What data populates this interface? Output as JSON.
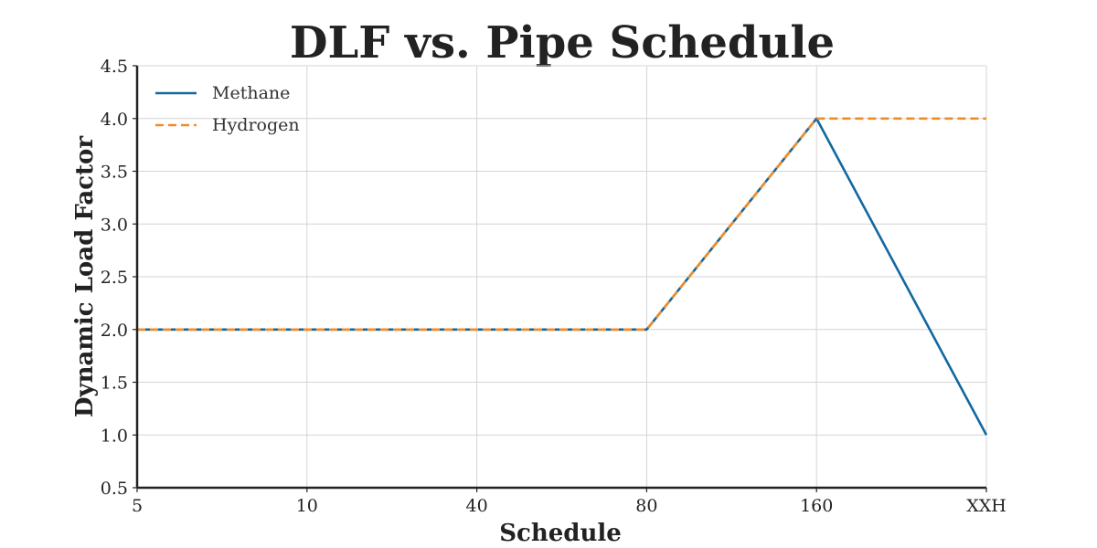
{
  "chart_data": {
    "type": "line",
    "title": "DLF vs. Pipe Schedule",
    "xlabel": "Schedule",
    "ylabel": "Dynamic Load Factor",
    "categories": [
      "5",
      "10",
      "40",
      "80",
      "160",
      "XXH"
    ],
    "ylim": [
      0.5,
      4.5
    ],
    "yticks": [
      "0.5",
      "1.0",
      "1.5",
      "2.0",
      "2.5",
      "3.0",
      "3.5",
      "4.0",
      "4.5"
    ],
    "grid": true,
    "legend_position": "top-left",
    "series": [
      {
        "name": "Methane",
        "values": [
          2.0,
          2.0,
          2.0,
          2.0,
          4.0,
          1.0
        ],
        "color": "#1069a0",
        "style": "solid"
      },
      {
        "name": "Hydrogen",
        "values": [
          2.0,
          2.0,
          2.0,
          2.0,
          4.0,
          4.0
        ],
        "color": "#f28c28",
        "style": "dashed"
      }
    ]
  }
}
